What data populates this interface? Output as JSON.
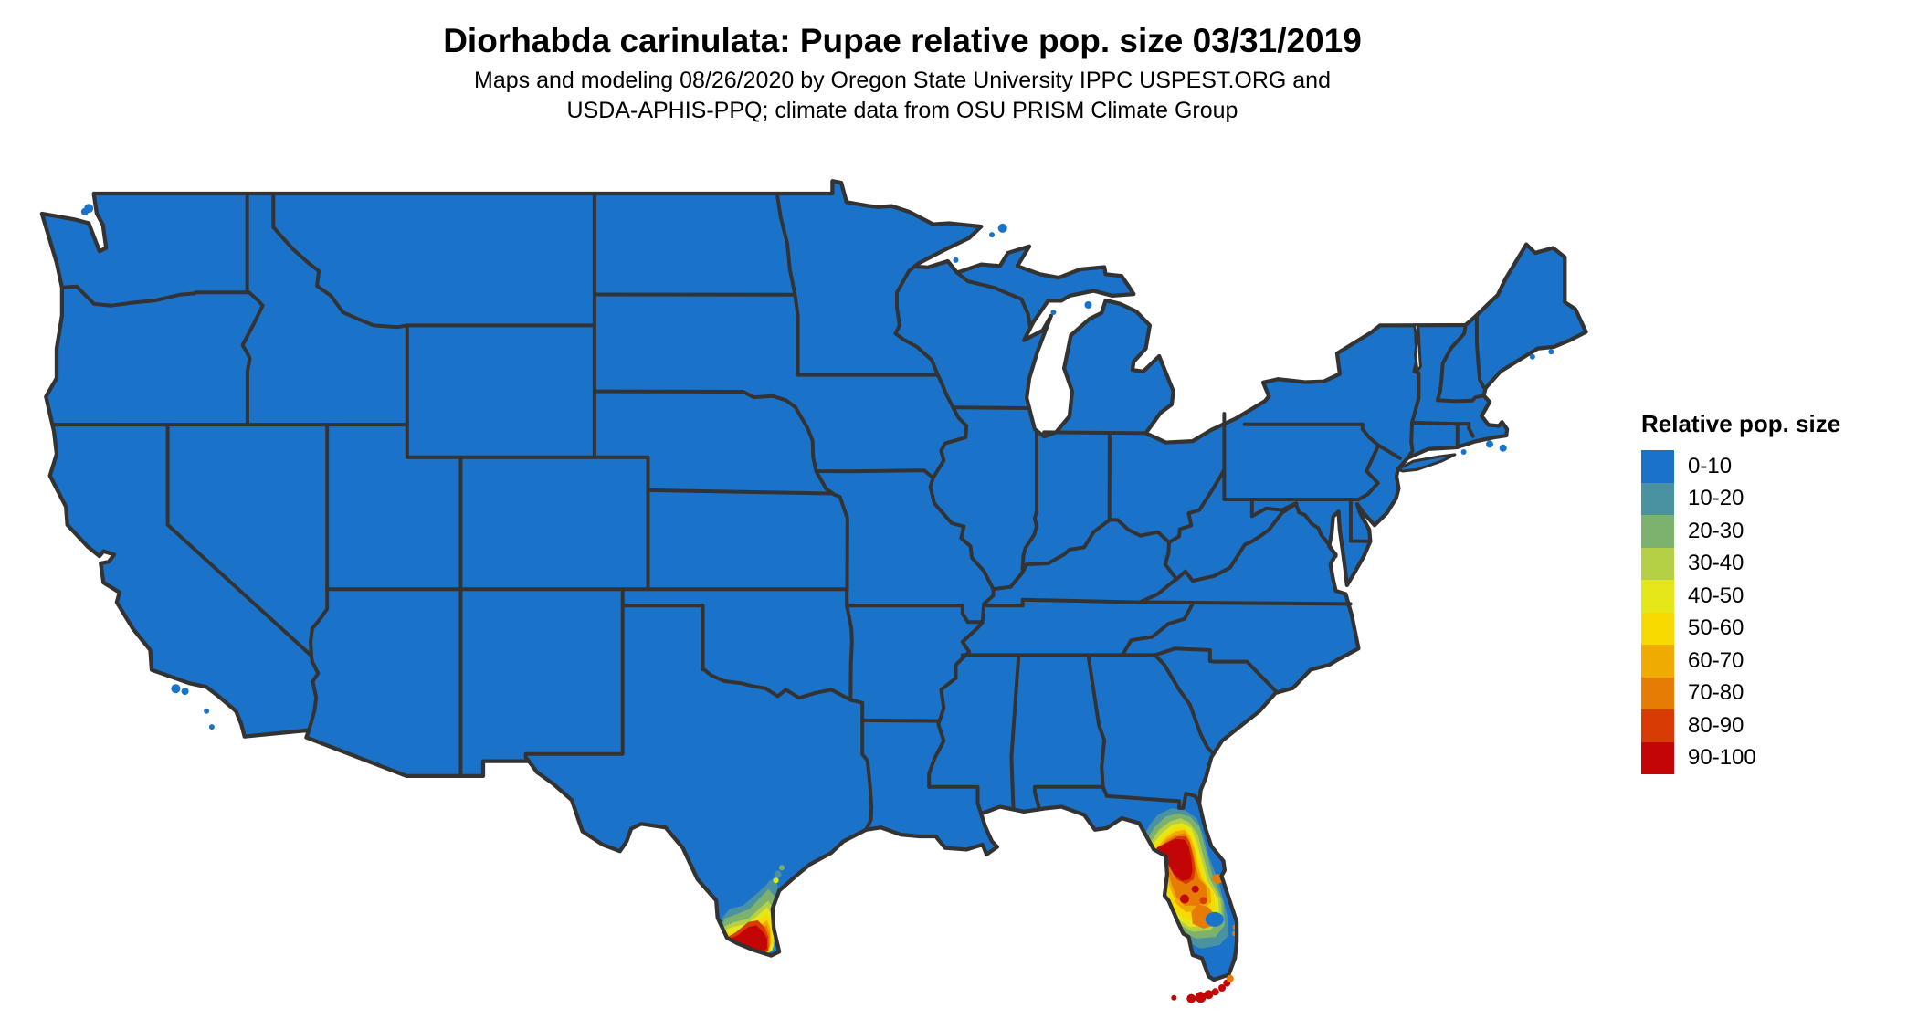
{
  "header": {
    "title": "Diorhabda carinulata: Pupae relative pop. size 03/31/2019",
    "subtitle_line1": "Maps and modeling 08/26/2020 by Oregon State University IPPC USPEST.ORG and",
    "subtitle_line2": "USDA-APHIS-PPQ; climate data from OSU PRISM Climate Group"
  },
  "legend": {
    "title": "Relative pop. size",
    "items": [
      {
        "label": "0-10",
        "color": "#1b73c9"
      },
      {
        "label": "10-20",
        "color": "#4a92a1"
      },
      {
        "label": "20-30",
        "color": "#7cb16e"
      },
      {
        "label": "30-40",
        "color": "#b6d046"
      },
      {
        "label": "40-50",
        "color": "#e6e718"
      },
      {
        "label": "50-60",
        "color": "#f8da00"
      },
      {
        "label": "60-70",
        "color": "#f0ab02"
      },
      {
        "label": "70-80",
        "color": "#e67c04"
      },
      {
        "label": "80-90",
        "color": "#d63c04"
      },
      {
        "label": "90-100",
        "color": "#c40505"
      }
    ]
  },
  "map": {
    "land_color": "#1b73c9",
    "border_color": "#333333",
    "background_color": "#ffffff",
    "hotspots": [
      {
        "name": "south-texas-rio-grande-valley",
        "max_range": "90-100"
      },
      {
        "name": "central-florida",
        "max_range": "90-100"
      },
      {
        "name": "florida-keys",
        "max_range": "90-100"
      },
      {
        "name": "florida-southeast-coast",
        "max_range": "90-100"
      }
    ]
  }
}
